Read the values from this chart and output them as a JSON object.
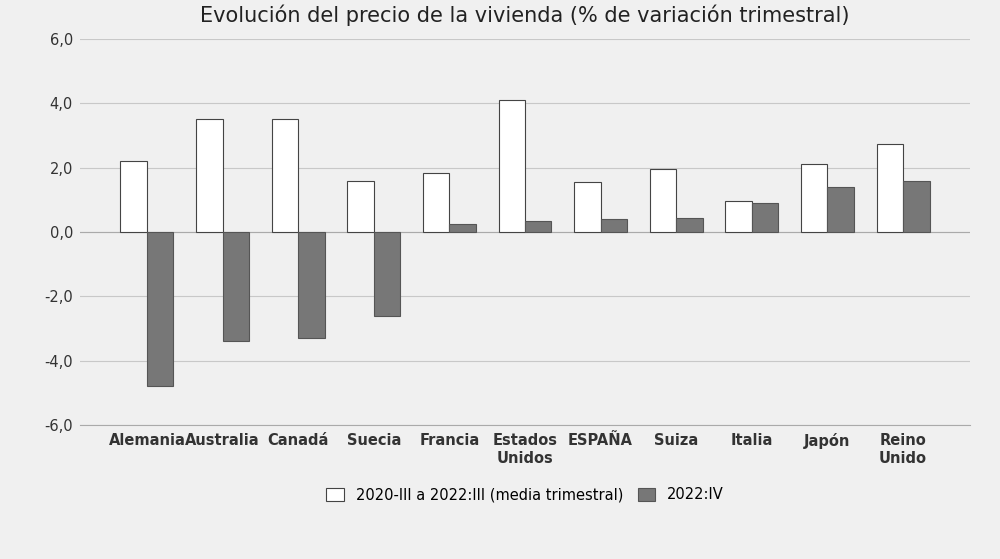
{
  "title": "Evolución del precio de la vivienda (% de variación trimestral)",
  "categories": [
    "Alemania",
    "Australia",
    "Canadá",
    "Suecia",
    "Francia",
    "Estados\nUnidos",
    "ESPAÑA",
    "Suiza",
    "Italia",
    "Japón",
    "Reino\nUnido"
  ],
  "series1_label": "2020-III a 2022:III (media trimestral)",
  "series2_label": "2022:IV",
  "series1_values": [
    2.2,
    3.5,
    3.5,
    1.6,
    1.85,
    4.1,
    1.55,
    1.95,
    0.95,
    2.1,
    2.75
  ],
  "series2_values": [
    -4.8,
    -3.4,
    -3.3,
    -2.6,
    0.25,
    0.35,
    0.4,
    0.45,
    0.9,
    1.4,
    1.6
  ],
  "bar1_facecolor": "#ffffff",
  "bar1_edgecolor": "#444444",
  "bar2_facecolor": "#777777",
  "bar2_edgecolor": "#555555",
  "ylim": [
    -6.0,
    6.0
  ],
  "yticks": [
    -6.0,
    -4.0,
    -2.0,
    0.0,
    2.0,
    4.0,
    6.0
  ],
  "ytick_labels": [
    "-6,0",
    "-4,0",
    "-2,0",
    "0,0",
    "2,0",
    "4,0",
    "6,0"
  ],
  "background_color": "#f0f0f0",
  "plot_bg_color": "#f0f0f0",
  "grid_color": "#c8c8c8",
  "title_fontsize": 15,
  "tick_fontsize": 10.5,
  "xtick_fontsize": 10.5,
  "legend_fontsize": 10.5,
  "bar_width": 0.35
}
